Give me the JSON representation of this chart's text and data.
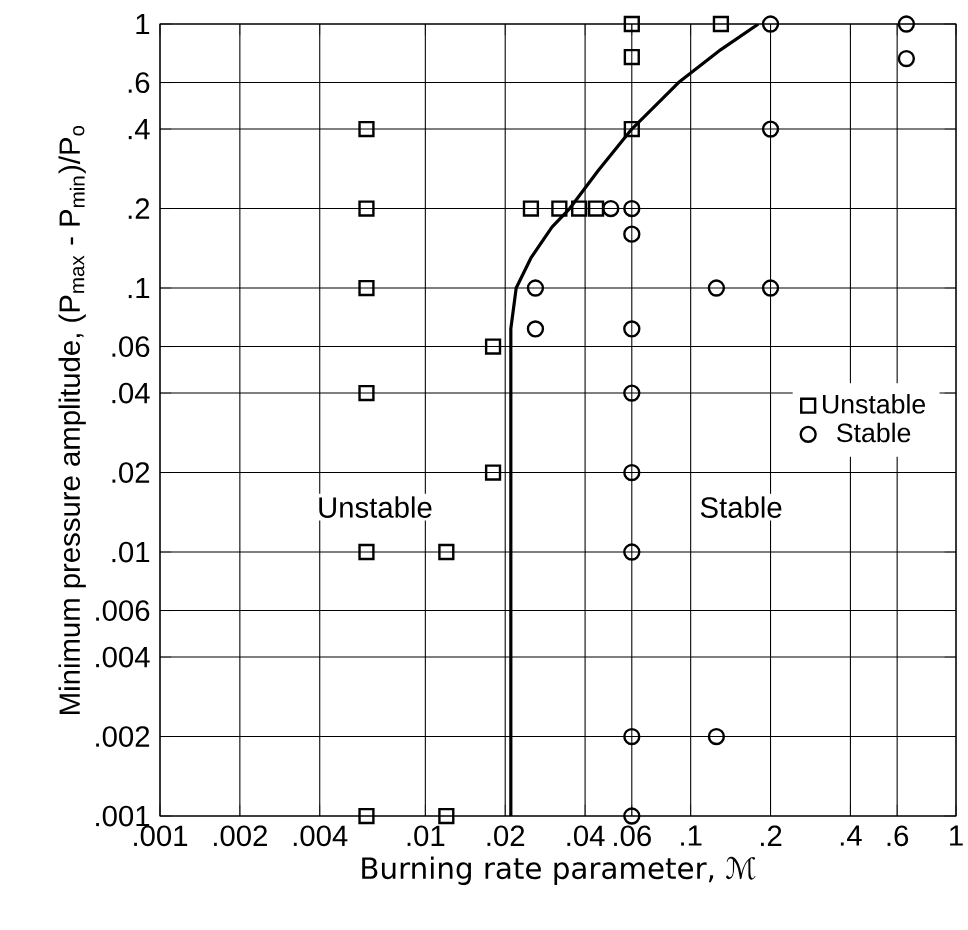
{
  "chart_data": {
    "type": "scatter",
    "xlabel": "Burning rate parameter, ℳ",
    "ylabel": "Minimum pressure amplitude, (P$_{max}$ - P$_{min}$)/P$_{o}$",
    "log": "xy",
    "grid": true,
    "legend": "right",
    "xlim": [
      0.001,
      1
    ],
    "ylim": [
      0.001,
      1
    ],
    "xticks": [
      {
        "value": 0.001,
        "label": ".001"
      },
      {
        "value": 0.002,
        "label": ".002"
      },
      {
        "value": 0.004,
        "label": ".004"
      },
      {
        "value": 0.01,
        "label": ".01"
      },
      {
        "value": 0.02,
        "label": ".02"
      },
      {
        "value": 0.04,
        "label": ".04"
      },
      {
        "value": 0.06,
        "label": ".06"
      },
      {
        "value": 0.1,
        "label": ".1"
      },
      {
        "value": 0.2,
        "label": ".2"
      },
      {
        "value": 0.4,
        "label": ".4"
      },
      {
        "value": 0.6,
        "label": ".6"
      },
      1
    ],
    "yticks": [
      {
        "value": 0.001,
        "label": ".001"
      },
      {
        "value": 0.002,
        "label": ".002"
      },
      {
        "value": 0.004,
        "label": ".004"
      },
      {
        "value": 0.006,
        "label": ".006"
      },
      {
        "value": 0.01,
        "label": ".01"
      },
      {
        "value": 0.02,
        "label": ".02"
      },
      {
        "value": 0.04,
        "label": ".04"
      },
      {
        "value": 0.06,
        "label": ".06"
      },
      {
        "value": 0.1,
        "label": ".1"
      },
      {
        "value": 0.2,
        "label": ".2"
      },
      {
        "value": 0.4,
        "label": ".4"
      },
      {
        "value": 0.6,
        "label": ".6"
      },
      1
    ],
    "series": [
      {
        "name": "Unstable",
        "color": "#000000",
        "marker": "square",
        "x": [
          0.006,
          0.006,
          0.006,
          0.006,
          0.006,
          0.006,
          0.012,
          0.012,
          0.018,
          0.018,
          0.025,
          0.032,
          0.038,
          0.044,
          0.06,
          0.06,
          0.06,
          0.13
        ],
        "values": [
          0.4,
          0.2,
          0.1,
          0.04,
          0.01,
          0.001,
          0.01,
          0.001,
          0.06,
          0.02,
          0.2,
          0.2,
          0.2,
          0.2,
          1,
          0.75,
          0.4,
          1
        ]
      },
      {
        "name": "Stable",
        "color": "#000000",
        "marker": "circle",
        "x": [
          0.2,
          0.65,
          0.65,
          0.2,
          0.05,
          0.06,
          0.06,
          0.026,
          0.026,
          0.125,
          0.2,
          0.06,
          0.06,
          0.06,
          0.06,
          0.06,
          0.06,
          0.125
        ],
        "values": [
          1,
          1,
          0.74,
          0.4,
          0.2,
          0.2,
          0.16,
          0.1,
          0.07,
          0.1,
          0.1,
          0.07,
          0.04,
          0.02,
          0.01,
          0.002,
          0.001,
          0.002
        ]
      },
      {
        "type": "line",
        "color": "#000000",
        "marker": "none",
        "line_style": "solid",
        "x": [
          0.021,
          0.021,
          0.022,
          0.025,
          0.03,
          0.035,
          0.045,
          0.06,
          0.09,
          0.13,
          0.18
        ],
        "values": [
          0.001,
          0.07,
          0.1,
          0.13,
          0.17,
          0.2,
          0.28,
          0.4,
          0.6,
          0.8,
          1
        ]
      }
    ],
    "annotations": [
      "Unstable",
      "Stable"
    ]
  }
}
